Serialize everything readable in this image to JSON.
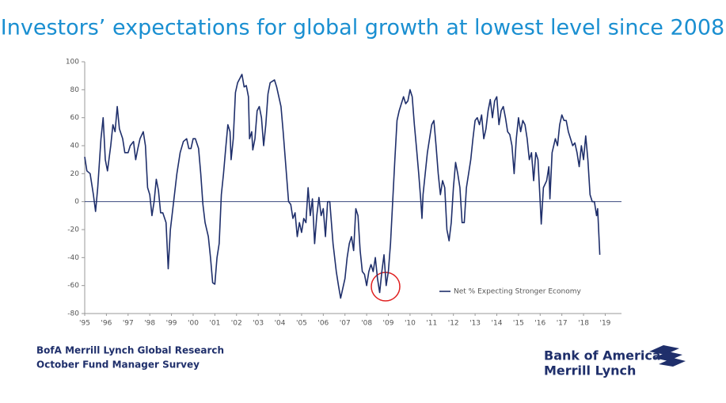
{
  "chart_data": {
    "type": "line",
    "title": "Investors’ expectations for global growth at lowest level since 2008",
    "x": [
      1995.0,
      1995.1,
      1995.25,
      1995.4,
      1995.5,
      1995.6,
      1995.75,
      1995.85,
      1995.95,
      1996.05,
      1996.2,
      1996.3,
      1996.4,
      1996.5,
      1996.6,
      1996.75,
      1996.85,
      1997.0,
      1997.1,
      1997.25,
      1997.35,
      1997.45,
      1997.55,
      1997.7,
      1997.8,
      1997.9,
      1998.0,
      1998.1,
      1998.2,
      1998.3,
      1998.4,
      1998.5,
      1998.6,
      1998.75,
      1998.85,
      1998.95,
      1999.1,
      1999.25,
      1999.4,
      1999.55,
      1999.7,
      1999.8,
      1999.9,
      2000.0,
      2000.1,
      2000.25,
      2000.35,
      2000.45,
      2000.55,
      2000.7,
      2000.8,
      2000.9,
      2001.0,
      2001.1,
      2001.2,
      2001.3,
      2001.4,
      2001.5,
      2001.6,
      2001.7,
      2001.75,
      2001.85,
      2001.95,
      2002.05,
      2002.15,
      2002.25,
      2002.35,
      2002.45,
      2002.55,
      2002.6,
      2002.7,
      2002.75,
      2002.85,
      2002.95,
      2003.05,
      2003.15,
      2003.25,
      2003.35,
      2003.45,
      2003.55,
      2003.65,
      2003.75,
      2003.85,
      2003.95,
      2004.05,
      2004.15,
      2004.3,
      2004.4,
      2004.5,
      2004.6,
      2004.7,
      2004.8,
      2004.9,
      2005.0,
      2005.1,
      2005.2,
      2005.3,
      2005.4,
      2005.5,
      2005.6,
      2005.7,
      2005.8,
      2005.9,
      2006.0,
      2006.1,
      2006.2,
      2006.3,
      2006.45,
      2006.6,
      2006.7,
      2006.8,
      2006.9,
      2007.0,
      2007.1,
      2007.2,
      2007.3,
      2007.4,
      2007.5,
      2007.6,
      2007.7,
      2007.8,
      2007.9,
      2008.0,
      2008.1,
      2008.2,
      2008.3,
      2008.4,
      2008.5,
      2008.6,
      2008.7,
      2008.8,
      2008.9,
      2009.0,
      2009.1,
      2009.2,
      2009.3,
      2009.4,
      2009.5,
      2009.6,
      2009.7,
      2009.8,
      2009.9,
      2010.0,
      2010.1,
      2010.2,
      2010.3,
      2010.4,
      2010.5,
      2010.55,
      2010.6,
      2010.7,
      2010.8,
      2010.9,
      2011.0,
      2011.1,
      2011.2,
      2011.3,
      2011.4,
      2011.5,
      2011.6,
      2011.7,
      2011.8,
      2011.9,
      2012.0,
      2012.1,
      2012.2,
      2012.3,
      2012.4,
      2012.5,
      2012.6,
      2012.7,
      2012.8,
      2012.9,
      2013.0,
      2013.1,
      2013.2,
      2013.3,
      2013.4,
      2013.5,
      2013.6,
      2013.7,
      2013.8,
      2013.9,
      2014.0,
      2014.1,
      2014.2,
      2014.3,
      2014.4,
      2014.5,
      2014.6,
      2014.7,
      2014.8,
      2014.9,
      2015.0,
      2015.1,
      2015.2,
      2015.3,
      2015.4,
      2015.5,
      2015.6,
      2015.7,
      2015.8,
      2015.9,
      2016.0,
      2016.05,
      2016.15,
      2016.3,
      2016.4,
      2016.45,
      2016.55,
      2016.7,
      2016.8,
      2016.9,
      2017.0,
      2017.1,
      2017.2,
      2017.3,
      2017.4,
      2017.5,
      2017.6,
      2017.7,
      2017.8,
      2017.9,
      2018.0,
      2018.1,
      2018.2,
      2018.3,
      2018.4,
      2018.5,
      2018.6,
      2018.65,
      2018.75
    ],
    "series": [
      {
        "name": "Net % Expecting Stronger Economy",
        "color": "#1f2f6b",
        "values": [
          32,
          22,
          20,
          5,
          -7,
          10,
          45,
          60,
          30,
          22,
          40,
          55,
          50,
          68,
          52,
          45,
          35,
          35,
          40,
          43,
          30,
          38,
          45,
          50,
          40,
          10,
          5,
          -10,
          0,
          16,
          8,
          -8,
          -8,
          -15,
          -48,
          -20,
          0,
          20,
          35,
          43,
          45,
          38,
          38,
          45,
          45,
          38,
          20,
          -2,
          -15,
          -25,
          -40,
          -58,
          -59,
          -40,
          -30,
          5,
          20,
          38,
          55,
          50,
          30,
          45,
          78,
          85,
          88,
          91,
          82,
          83,
          75,
          45,
          50,
          37,
          45,
          65,
          68,
          60,
          40,
          55,
          77,
          85,
          86,
          87,
          82,
          75,
          68,
          50,
          20,
          0,
          -2,
          -12,
          -8,
          -25,
          -15,
          -22,
          -12,
          -15,
          10,
          -10,
          2,
          -30,
          -10,
          3,
          -10,
          -5,
          -25,
          0,
          0,
          -30,
          -50,
          -60,
          -69,
          -62,
          -55,
          -40,
          -30,
          -25,
          -35,
          -5,
          -10,
          -35,
          -50,
          -52,
          -60,
          -50,
          -45,
          -50,
          -40,
          -55,
          -65,
          -50,
          -38,
          -60,
          -50,
          -30,
          0,
          30,
          58,
          65,
          70,
          75,
          70,
          72,
          80,
          75,
          55,
          38,
          20,
          0,
          -12,
          5,
          20,
          35,
          45,
          55,
          58,
          40,
          20,
          5,
          15,
          10,
          -20,
          -28,
          -15,
          10,
          28,
          20,
          10,
          -15,
          -15,
          10,
          20,
          30,
          45,
          58,
          60,
          55,
          62,
          45,
          52,
          65,
          73,
          60,
          72,
          75,
          55,
          65,
          68,
          60,
          50,
          48,
          40,
          20,
          45,
          60,
          50,
          58,
          55,
          45,
          30,
          35,
          15,
          35,
          30,
          0,
          -16,
          10,
          15,
          25,
          2,
          35,
          45,
          40,
          55,
          62,
          58,
          58,
          50,
          45,
          40,
          42,
          35,
          25,
          40,
          30,
          47,
          30,
          5,
          0,
          0,
          -10,
          -5,
          -38
        ]
      }
    ],
    "xlim": [
      1995,
      2019.75
    ],
    "xticks": [
      {
        "value": 1995,
        "label": "'95"
      },
      {
        "value": 1996,
        "label": "'96"
      },
      {
        "value": 1997,
        "label": "'97"
      },
      {
        "value": 1998,
        "label": "'98"
      },
      {
        "value": 1999,
        "label": "'99"
      },
      {
        "value": 2000,
        "label": "'00"
      },
      {
        "value": 2001,
        "label": "'01"
      },
      {
        "value": 2002,
        "label": "'02"
      },
      {
        "value": 2003,
        "label": "'03"
      },
      {
        "value": 2004,
        "label": "'04"
      },
      {
        "value": 2005,
        "label": "'05"
      },
      {
        "value": 2006,
        "label": "'06"
      },
      {
        "value": 2007,
        "label": "'07"
      },
      {
        "value": 2008,
        "label": "'08"
      },
      {
        "value": 2009,
        "label": "'09"
      },
      {
        "value": 2010,
        "label": "'10"
      },
      {
        "value": 2011,
        "label": "'11"
      },
      {
        "value": 2012,
        "label": "'12"
      },
      {
        "value": 2013,
        "label": "'13"
      },
      {
        "value": 2014,
        "label": "'14"
      },
      {
        "value": 2015,
        "label": "'15"
      },
      {
        "value": 2016,
        "label": "'16"
      },
      {
        "value": 2017,
        "label": "'17"
      },
      {
        "value": 2018,
        "label": "'18"
      },
      {
        "value": 2019,
        "label": "'19"
      }
    ],
    "ylim": [
      -80,
      100
    ],
    "yticks": [
      -80,
      -60,
      -40,
      -20,
      0,
      20,
      40,
      60,
      80,
      100
    ],
    "legend": "lower right"
  },
  "footer": {
    "source": [
      "BofA Merrill Lynch Global Research",
      "October Fund Manager Survey"
    ],
    "logo": [
      "Bank of America",
      "Merrill Lynch"
    ]
  }
}
